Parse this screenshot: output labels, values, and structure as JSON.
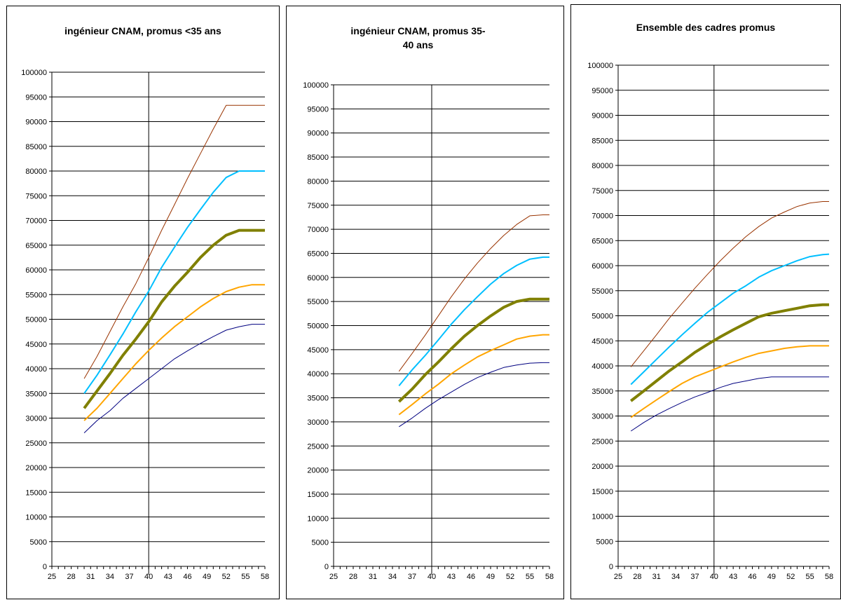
{
  "chart_data": [
    {
      "type": "line",
      "title": "ingénieur CNAM, promus <35 ans",
      "x_ticks": [
        "25",
        "28",
        "31",
        "34",
        "37",
        "40",
        "43",
        "46",
        "49",
        "52",
        "55",
        "58"
      ],
      "y_ticks": [
        "0",
        "5000",
        "10000",
        "15000",
        "20000",
        "25000",
        "30000",
        "35000",
        "40000",
        "45000",
        "50000",
        "55000",
        "60000",
        "65000",
        "70000",
        "75000",
        "80000",
        "85000",
        "90000",
        "95000",
        "100000"
      ],
      "ylim": [
        0,
        100000
      ],
      "xlim": [
        25,
        58
      ],
      "vline_x": 40,
      "grid": "horizontal",
      "x": [
        30,
        32,
        34,
        36,
        38,
        40,
        42,
        44,
        46,
        48,
        50,
        52,
        54,
        56,
        58
      ],
      "series": [
        {
          "color": "#000080",
          "width": 1,
          "values": [
            27000,
            29500,
            31500,
            34000,
            36000,
            38000,
            40000,
            42000,
            43600,
            45100,
            46500,
            47800,
            48500,
            49000,
            49000
          ]
        },
        {
          "color": "#ffa500",
          "width": 2,
          "values": [
            29500,
            32000,
            35000,
            38000,
            41000,
            43700,
            46200,
            48500,
            50500,
            52500,
            54200,
            55600,
            56500,
            57000,
            57000
          ]
        },
        {
          "color": "#808000",
          "width": 4,
          "values": [
            32000,
            35500,
            39000,
            42700,
            46000,
            49500,
            53500,
            56700,
            59500,
            62500,
            65000,
            67000,
            68000,
            68000,
            68000
          ]
        },
        {
          "color": "#00bfff",
          "width": 2,
          "values": [
            35000,
            38700,
            42800,
            47000,
            51500,
            55700,
            60500,
            64600,
            68600,
            72200,
            75700,
            78700,
            80000,
            80000,
            80000
          ]
        },
        {
          "color": "#993300",
          "width": 1,
          "values": [
            38000,
            42500,
            47500,
            52500,
            57200,
            62500,
            68000,
            73200,
            78500,
            83500,
            88500,
            93300,
            93300,
            93300,
            93300
          ]
        }
      ]
    },
    {
      "type": "line",
      "title": "ingénieur CNAM, promus 35-40 ans",
      "x_ticks": [
        "25",
        "28",
        "31",
        "34",
        "37",
        "40",
        "43",
        "46",
        "49",
        "52",
        "55",
        "58"
      ],
      "y_ticks": [
        "0",
        "5000",
        "10000",
        "15000",
        "20000",
        "25000",
        "30000",
        "35000",
        "40000",
        "45000",
        "50000",
        "55000",
        "60000",
        "65000",
        "70000",
        "75000",
        "80000",
        "85000",
        "90000",
        "95000",
        "100000"
      ],
      "ylim": [
        0,
        100000
      ],
      "xlim": [
        25,
        58
      ],
      "vline_x": 40,
      "grid": "horizontal",
      "x": [
        35,
        37,
        39,
        41,
        43,
        45,
        47,
        49,
        51,
        53,
        55,
        57,
        58
      ],
      "series": [
        {
          "color": "#000080",
          "width": 1,
          "values": [
            29000,
            30800,
            32800,
            34600,
            36200,
            37800,
            39200,
            40300,
            41300,
            41800,
            42200,
            42300,
            42300
          ]
        },
        {
          "color": "#ffa500",
          "width": 2,
          "values": [
            31500,
            33600,
            35800,
            37800,
            40000,
            41800,
            43500,
            44800,
            46000,
            47200,
            47800,
            48100,
            48100
          ]
        },
        {
          "color": "#808000",
          "width": 4,
          "values": [
            34200,
            36800,
            39800,
            42400,
            45200,
            47800,
            50000,
            52000,
            53800,
            55000,
            55500,
            55500,
            55500
          ]
        },
        {
          "color": "#00bfff",
          "width": 2,
          "values": [
            37500,
            40800,
            43800,
            47000,
            50300,
            53300,
            56000,
            58600,
            60800,
            62500,
            63800,
            64200,
            64200
          ]
        },
        {
          "color": "#993300",
          "width": 1,
          "values": [
            40500,
            44200,
            48000,
            52000,
            56000,
            59700,
            63000,
            66000,
            68700,
            71000,
            72800,
            73000,
            73000
          ]
        }
      ]
    },
    {
      "type": "line",
      "title": "Ensemble des cadres promus",
      "x_ticks": [
        "25",
        "28",
        "31",
        "34",
        "37",
        "40",
        "43",
        "46",
        "49",
        "52",
        "55",
        "58"
      ],
      "y_ticks": [
        "0",
        "5000",
        "10000",
        "15000",
        "20000",
        "25000",
        "30000",
        "35000",
        "40000",
        "45000",
        "50000",
        "55000",
        "60000",
        "65000",
        "70000",
        "75000",
        "80000",
        "85000",
        "90000",
        "95000",
        "100000"
      ],
      "ylim": [
        0,
        100000
      ],
      "xlim": [
        25,
        58
      ],
      "vline_x": 40,
      "grid": "horizontal",
      "x": [
        27,
        29,
        31,
        33,
        35,
        37,
        39,
        41,
        43,
        45,
        47,
        49,
        51,
        53,
        55,
        57,
        58
      ],
      "series": [
        {
          "color": "#000080",
          "width": 1,
          "values": [
            27000,
            28700,
            30200,
            31500,
            32700,
            33800,
            34700,
            35700,
            36500,
            37000,
            37500,
            37800,
            37800,
            37800,
            37800,
            37800,
            37800
          ]
        },
        {
          "color": "#ffa500",
          "width": 2,
          "values": [
            29700,
            31500,
            33200,
            34900,
            36500,
            37800,
            38800,
            39800,
            40800,
            41700,
            42500,
            43000,
            43500,
            43800,
            44000,
            44000,
            44000
          ]
        },
        {
          "color": "#808000",
          "width": 4,
          "values": [
            33000,
            35000,
            37000,
            39000,
            40800,
            42700,
            44300,
            45800,
            47200,
            48500,
            49800,
            50500,
            51000,
            51500,
            52000,
            52200,
            52200
          ]
        },
        {
          "color": "#00bfff",
          "width": 2,
          "values": [
            36300,
            38800,
            41300,
            43800,
            46200,
            48500,
            50700,
            52600,
            54500,
            56000,
            57700,
            59000,
            60000,
            61000,
            61800,
            62200,
            62300
          ]
        },
        {
          "color": "#993300",
          "width": 1,
          "values": [
            39800,
            43000,
            46200,
            49500,
            52500,
            55500,
            58300,
            61000,
            63500,
            65800,
            67800,
            69500,
            70700,
            71800,
            72500,
            72800,
            72800
          ]
        }
      ]
    }
  ]
}
